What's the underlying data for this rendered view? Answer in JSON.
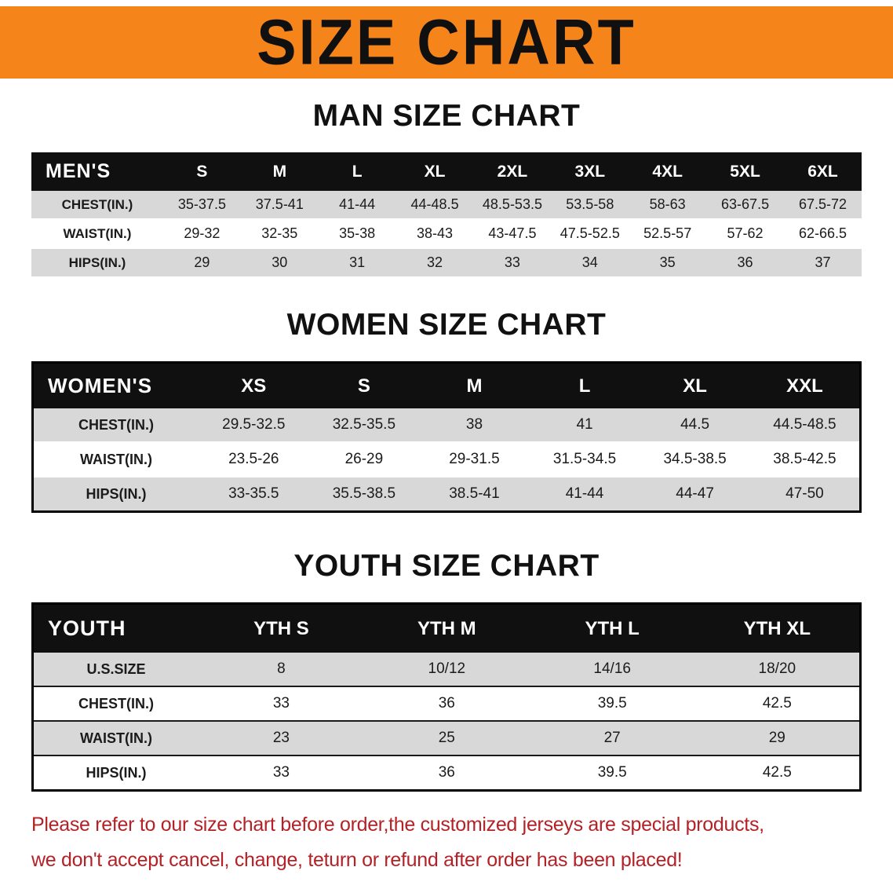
{
  "banner": {
    "title": "SIZE CHART"
  },
  "theme": {
    "banner_bg": "#F5851B",
    "header_bg": "#101010",
    "header_text": "#FFFFFF",
    "row_alt_bg": "#D8D8D8",
    "title_color": "#111111",
    "disclaimer_color": "#B42126",
    "border_color": "#000000"
  },
  "sections": [
    {
      "title": "MAN SIZE CHART",
      "table": {
        "corner_label": "MEN'S",
        "columns": [
          "S",
          "M",
          "L",
          "XL",
          "2XL",
          "3XL",
          "4XL",
          "5XL",
          "6XL"
        ],
        "rows": [
          {
            "label": "CHEST(IN.)",
            "values": [
              "35-37.5",
              "37.5-41",
              "41-44",
              "44-48.5",
              "48.5-53.5",
              "53.5-58",
              "58-63",
              "63-67.5",
              "67.5-72"
            ]
          },
          {
            "label": "WAIST(IN.)",
            "values": [
              "29-32",
              "32-35",
              "35-38",
              "38-43",
              "43-47.5",
              "47.5-52.5",
              "52.5-57",
              "57-62",
              "62-66.5"
            ]
          },
          {
            "label": "HIPS(IN.)",
            "values": [
              "29",
              "30",
              "31",
              "32",
              "33",
              "34",
              "35",
              "36",
              "37"
            ]
          }
        ]
      }
    },
    {
      "title": "WOMEN SIZE CHART",
      "table": {
        "corner_label": "WOMEN'S",
        "columns": [
          "XS",
          "S",
          "M",
          "L",
          "XL",
          "XXL"
        ],
        "rows": [
          {
            "label": "CHEST(IN.)",
            "values": [
              "29.5-32.5",
              "32.5-35.5",
              "38",
              "41",
              "44.5",
              "44.5-48.5"
            ]
          },
          {
            "label": "WAIST(IN.)",
            "values": [
              "23.5-26",
              "26-29",
              "29-31.5",
              "31.5-34.5",
              "34.5-38.5",
              "38.5-42.5"
            ]
          },
          {
            "label": "HIPS(IN.)",
            "values": [
              "33-35.5",
              "35.5-38.5",
              "38.5-41",
              "41-44",
              "44-47",
              "47-50"
            ]
          }
        ]
      }
    },
    {
      "title": "YOUTH SIZE CHART",
      "table": {
        "corner_label": "YOUTH",
        "columns": [
          "YTH S",
          "YTH M",
          "YTH L",
          "YTH XL"
        ],
        "rows": [
          {
            "label": "U.S.SIZE",
            "values": [
              "8",
              "10/12",
              "14/16",
              "18/20"
            ]
          },
          {
            "label": "CHEST(IN.)",
            "values": [
              "33",
              "36",
              "39.5",
              "42.5"
            ]
          },
          {
            "label": "WAIST(IN.)",
            "values": [
              "23",
              "25",
              "27",
              "29"
            ]
          },
          {
            "label": "HIPS(IN.)",
            "values": [
              "33",
              "36",
              "39.5",
              "42.5"
            ]
          }
        ]
      }
    }
  ],
  "disclaimer": {
    "lines": [
      "Please refer to our size chart before order,the customized jerseys are special products,",
      "we don't accept cancel, change, teturn or refund after order has been placed!"
    ]
  }
}
